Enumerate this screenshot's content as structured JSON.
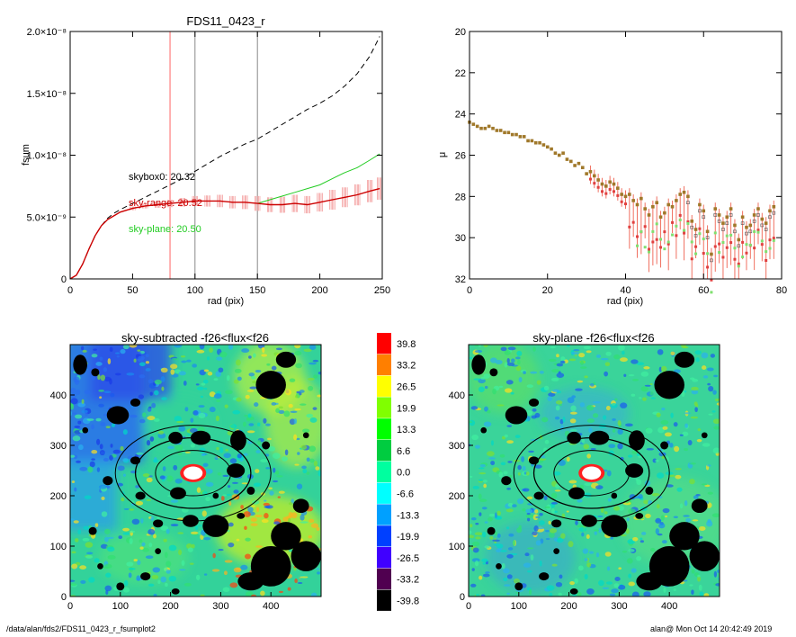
{
  "footer": {
    "path": "/data/alan/fds2/FDS11_0423_r_fsumplot2",
    "stamp": "alan@  Mon Oct 14 20:42:49 2019"
  },
  "colors": {
    "dashed": "#000000",
    "sky_range": "#cc0000",
    "sky_plane": "#22cc22",
    "vline_red": "#ff6666",
    "vline_grey": "#888888"
  },
  "chart_data": [
    {
      "type": "line",
      "title": "FDS11_0423_r",
      "xlabel": "rad (pix)",
      "ylabel": "fsum",
      "xlim": [
        0,
        250
      ],
      "ylim": [
        0,
        2e-08
      ],
      "x_ticks": [
        "0",
        "50",
        "100",
        "150",
        "200",
        "250"
      ],
      "y_ticks": [
        "0",
        "5.0×10⁻⁹",
        "1.0×10⁻⁸",
        "1.5×10⁻⁸",
        "2.0×10⁻⁸"
      ],
      "annotations": [
        "skybox0: 20.32",
        "sky-range: 20.52",
        "sky-plane: 20.50"
      ],
      "vlines": [
        {
          "x": 80,
          "color": "red"
        },
        {
          "x": 100,
          "color": "grey"
        },
        {
          "x": 150,
          "color": "grey"
        }
      ],
      "series": [
        {
          "style": "dashed",
          "x": [
            0,
            5,
            10,
            15,
            20,
            25,
            30,
            35,
            40,
            50,
            60,
            70,
            80,
            90,
            100,
            110,
            120,
            130,
            140,
            150,
            160,
            170,
            180,
            190,
            200,
            210,
            220,
            230,
            240,
            248
          ],
          "values": [
            0,
            3e-10,
            1.2e-09,
            2.4e-09,
            3.5e-09,
            4.3e-09,
            4.9e-09,
            5.3e-09,
            5.6e-09,
            6.1e-09,
            6.6e-09,
            7.1e-09,
            7.6e-09,
            8.1e-09,
            8.7e-09,
            9.3e-09,
            9.9e-09,
            1.04e-08,
            1.09e-08,
            1.13e-08,
            1.19e-08,
            1.25e-08,
            1.31e-08,
            1.37e-08,
            1.42e-08,
            1.48e-08,
            1.56e-08,
            1.66e-08,
            1.8e-08,
            1.96e-08
          ]
        },
        {
          "style": "sky-range",
          "x": [
            0,
            5,
            10,
            15,
            20,
            25,
            30,
            35,
            40,
            50,
            60,
            70,
            80,
            90,
            100,
            110,
            120,
            130,
            140,
            150,
            160,
            170,
            180,
            190,
            200,
            210,
            220,
            230,
            240,
            248
          ],
          "values": [
            0,
            3e-10,
            1.2e-09,
            2.4e-09,
            3.5e-09,
            4.3e-09,
            4.8e-09,
            5.1e-09,
            5.4e-09,
            5.7e-09,
            5.9e-09,
            6e-09,
            6.1e-09,
            6.2e-09,
            6.3e-09,
            6.3e-09,
            6.3e-09,
            6.2e-09,
            6.2e-09,
            6.1e-09,
            6e-09,
            6e-09,
            6.1e-09,
            6e-09,
            6.2e-09,
            6.4e-09,
            6.6e-09,
            6.8e-09,
            7.1e-09,
            7.3e-09
          ],
          "errors": [
            0,
            0,
            0,
            0,
            0,
            0,
            0,
            0,
            0,
            1.5e-10,
            2e-10,
            2.5e-10,
            3e-10,
            3.5e-10,
            4e-10,
            4.5e-10,
            5e-10,
            5e-10,
            5.5e-10,
            6e-10,
            6e-10,
            6.5e-10,
            7e-10,
            7e-10,
            7.5e-10,
            8e-10,
            8e-10,
            8.5e-10,
            9e-10,
            9e-10
          ]
        },
        {
          "style": "sky-plane",
          "x": [
            150,
            160,
            170,
            180,
            190,
            200,
            210,
            220,
            230,
            240,
            248
          ],
          "values": [
            6.1e-09,
            6.4e-09,
            6.7e-09,
            7e-09,
            7.3e-09,
            7.6e-09,
            8.1e-09,
            8.6e-09,
            9e-09,
            9.6e-09,
            1.01e-08
          ]
        }
      ]
    },
    {
      "type": "scatter",
      "xlabel": "rad (pix)",
      "ylabel": "μ",
      "xlim": [
        0,
        80
      ],
      "ylim": [
        32,
        20
      ],
      "x_ticks": [
        "0",
        "20",
        "40",
        "60",
        "80"
      ],
      "y_ticks": [
        "20",
        "22",
        "24",
        "26",
        "28",
        "30",
        "32"
      ],
      "series": [
        {
          "style": "profile",
          "x": [
            0,
            1,
            2,
            3,
            4,
            5,
            6,
            7,
            8,
            9,
            10,
            11,
            12,
            13,
            14,
            15,
            16,
            17,
            18,
            19,
            20,
            21,
            22,
            23,
            24,
            25,
            26,
            27,
            28,
            29,
            30,
            31,
            32,
            33,
            34,
            35,
            36,
            37,
            38,
            39,
            40,
            41,
            42,
            43,
            44,
            45,
            46,
            47,
            48,
            49,
            50,
            51,
            52,
            53,
            54,
            55,
            56,
            57,
            58,
            59,
            60,
            61,
            62,
            63,
            64,
            65,
            66,
            67,
            68,
            69,
            70,
            71,
            72,
            73,
            74,
            75,
            76,
            77,
            78
          ],
          "values": [
            24.4,
            24.5,
            24.6,
            24.7,
            24.7,
            24.6,
            24.7,
            24.8,
            24.8,
            24.9,
            24.9,
            25.0,
            25.0,
            25.1,
            25.1,
            25.3,
            25.3,
            25.4,
            25.4,
            25.5,
            25.6,
            25.7,
            25.9,
            26.0,
            25.9,
            26.2,
            26.3,
            26.5,
            26.4,
            26.6,
            26.9,
            26.8,
            27.0,
            27.2,
            27.4,
            27.5,
            27.3,
            27.4,
            27.6,
            27.9,
            28.0,
            27.9,
            28.2,
            28.4,
            28.1,
            28.6,
            28.9,
            28.5,
            28.3,
            29.0,
            28.8,
            28.4,
            28.5,
            28.2,
            27.9,
            27.8,
            28.0,
            29.2,
            29.6,
            28.4,
            28.7,
            29.7,
            30.8,
            28.6,
            28.9,
            29.3,
            29.0,
            28.6,
            29.4,
            30.1,
            29.0,
            29.5,
            29.4,
            28.9,
            28.6,
            29.1,
            29.3,
            28.7,
            28.5
          ]
        }
      ]
    },
    {
      "type": "heatmap",
      "title": "sky-subtracted -f26<flux<f26",
      "xlim": [
        0,
        500
      ],
      "ylim": [
        0,
        500
      ],
      "x_ticks": [
        "0",
        "100",
        "200",
        "300",
        "400"
      ],
      "y_ticks": [
        "0",
        "100",
        "200",
        "300",
        "400"
      ],
      "colorbar": [
        "39.8",
        "33.2",
        "26.5",
        "19.9",
        "13.3",
        "6.6",
        "0.0",
        "-6.6",
        "-13.3",
        "-19.9",
        "-26.5",
        "-33.2",
        "-39.8"
      ],
      "colorbar_colors": [
        "#ff0000",
        "#ff7f00",
        "#ffff00",
        "#80ff00",
        "#00ff00",
        "#00cc40",
        "#00ff9f",
        "#00ffff",
        "#00a0ff",
        "#0040ff",
        "#4000ff",
        "#500050",
        "#000000"
      ]
    },
    {
      "type": "heatmap",
      "title": "sky-plane -f26<flux<f26",
      "xlim": [
        0,
        500
      ],
      "ylim": [
        0,
        500
      ],
      "x_ticks": [
        "0",
        "100",
        "200",
        "300",
        "400"
      ],
      "y_ticks": [
        "0",
        "100",
        "200",
        "300",
        "400"
      ]
    }
  ]
}
